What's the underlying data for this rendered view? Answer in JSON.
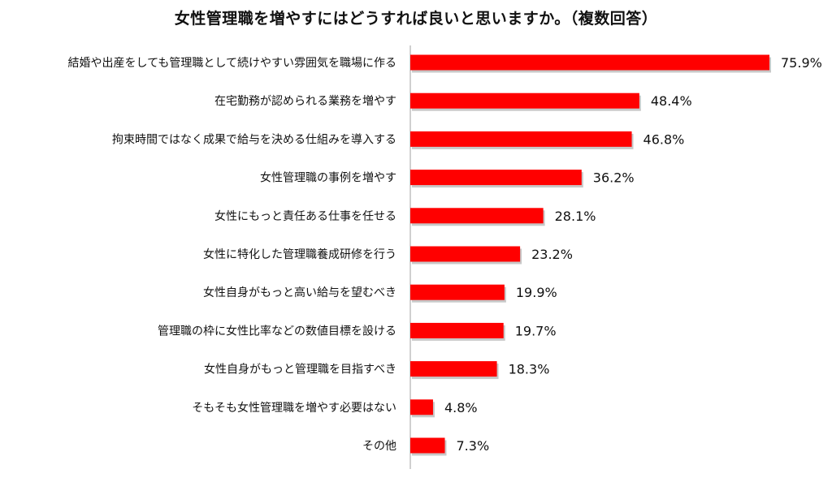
{
  "chart_data": {
    "type": "bar",
    "orientation": "horizontal",
    "title": "女性管理職を増やすにはどうすれば良いと思いますか。（複数回答）",
    "categories": [
      "結婚や出産をしても管理職として続けやすい雰囲気を職場に作る",
      "在宅勤務が認められる業務を増やす",
      "拘束時間ではなく成果で給与を決める仕組みを導入する",
      "女性管理職の事例を増やす",
      "女性にもっと責任ある仕事を任せる",
      "女性に特化した管理職養成研修を行う",
      "女性自身がもっと高い給与を望むべき",
      "管理職の枠に女性比率などの数値目標を設ける",
      "女性自身がもっと管理職を目指すべき",
      "そもそも女性管理職を増やす必要はない",
      "その他"
    ],
    "values": [
      75.9,
      48.4,
      46.8,
      36.2,
      28.1,
      23.2,
      19.9,
      19.7,
      18.3,
      4.8,
      7.3
    ],
    "value_labels": [
      "75.9%",
      "48.4%",
      "46.8%",
      "36.2%",
      "28.1%",
      "23.2%",
      "19.9%",
      "19.7%",
      "18.3%",
      "4.8%",
      "7.3%"
    ],
    "xlim": [
      0,
      80
    ],
    "grid": false,
    "legend": "none",
    "colors": {
      "bar": "#ff0000",
      "axis": "#a0a0a0",
      "text": "#111111"
    }
  }
}
